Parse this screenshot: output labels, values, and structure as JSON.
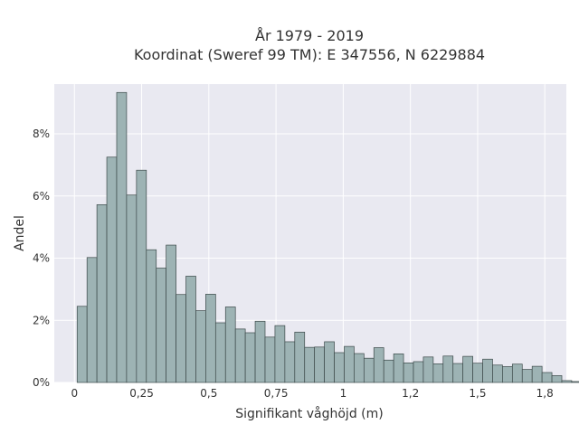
{
  "chart_data": {
    "type": "bar",
    "title_line1": "År 1979 - 2019",
    "title_line2": "Koordinat (Sweref 99 TM): E 347556, N 6229884",
    "xlabel": "Signifikant våghöjd (m)",
    "ylabel": "Andel",
    "xlim": [
      -0.075,
      1.83
    ],
    "ylim": [
      0,
      9.6
    ],
    "x_ticks": [
      {
        "value": 0,
        "label": "0"
      },
      {
        "value": 0.25,
        "label": "0,25"
      },
      {
        "value": 0.5,
        "label": "0,5"
      },
      {
        "value": 0.75,
        "label": "0,75"
      },
      {
        "value": 1,
        "label": "1"
      },
      {
        "value": 1.25,
        "label": "1,2"
      },
      {
        "value": 1.5,
        "label": "1,5"
      },
      {
        "value": 1.75,
        "label": "1,8"
      }
    ],
    "y_ticks": [
      {
        "value": 0,
        "label": "0%"
      },
      {
        "value": 2,
        "label": "2%"
      },
      {
        "value": 4,
        "label": "4%"
      },
      {
        "value": 6,
        "label": "6%"
      },
      {
        "value": 8,
        "label": "8%"
      }
    ],
    "bin_width": 0.0368,
    "bin_start": 0.01,
    "values": [
      2.45,
      4.02,
      5.72,
      7.25,
      9.33,
      6.03,
      6.83,
      4.27,
      3.68,
      4.42,
      2.83,
      3.42,
      2.31,
      2.84,
      1.92,
      2.43,
      1.72,
      1.6,
      1.97,
      1.46,
      1.83,
      1.31,
      1.62,
      1.13,
      1.14,
      1.31,
      0.96,
      1.16,
      0.93,
      0.78,
      1.12,
      0.72,
      0.92,
      0.63,
      0.67,
      0.82,
      0.6,
      0.85,
      0.61,
      0.84,
      0.62,
      0.75,
      0.56,
      0.51,
      0.59,
      0.42,
      0.52,
      0.32,
      0.22,
      0.06,
      0.03
    ],
    "bar_color": "#9db3b4",
    "bar_edge": "#3d4a4a",
    "plot_background": "#e9e9f1",
    "grid": true,
    "grid_color": "#ffffff"
  }
}
